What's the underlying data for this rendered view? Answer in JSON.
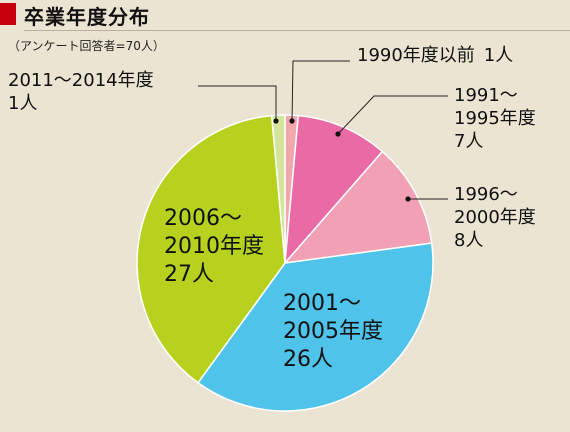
{
  "header": {
    "title": "卒業年度分布",
    "note": "（アンケート回答者=70人）"
  },
  "colors": {
    "accent": "#c8000b",
    "background": "#ece4d3"
  },
  "chart_data": {
    "type": "pie",
    "title": "卒業年度分布",
    "subtitle": "（アンケート回答者=70人）",
    "total": 70,
    "unit": "人",
    "slices": [
      {
        "category": "1990年度以前",
        "count_label": "1人",
        "value": 1,
        "color": "#f2a7ad"
      },
      {
        "category": "1991～1995年度",
        "count_label": "7人",
        "value": 7,
        "color": "#e96aa4"
      },
      {
        "category": "1996～2000年度",
        "count_label": "8人",
        "value": 8,
        "color": "#f2a0b6"
      },
      {
        "category": "2001～2005年度",
        "count_label": "26人",
        "value": 26,
        "color": "#4fc3ea"
      },
      {
        "category": "2006～2010年度",
        "count_label": "27人",
        "value": 27,
        "color": "#b6d21f"
      },
      {
        "category": "2011～2014年度",
        "count_label": "1人",
        "value": 1,
        "color": "#d3e59a"
      }
    ]
  }
}
